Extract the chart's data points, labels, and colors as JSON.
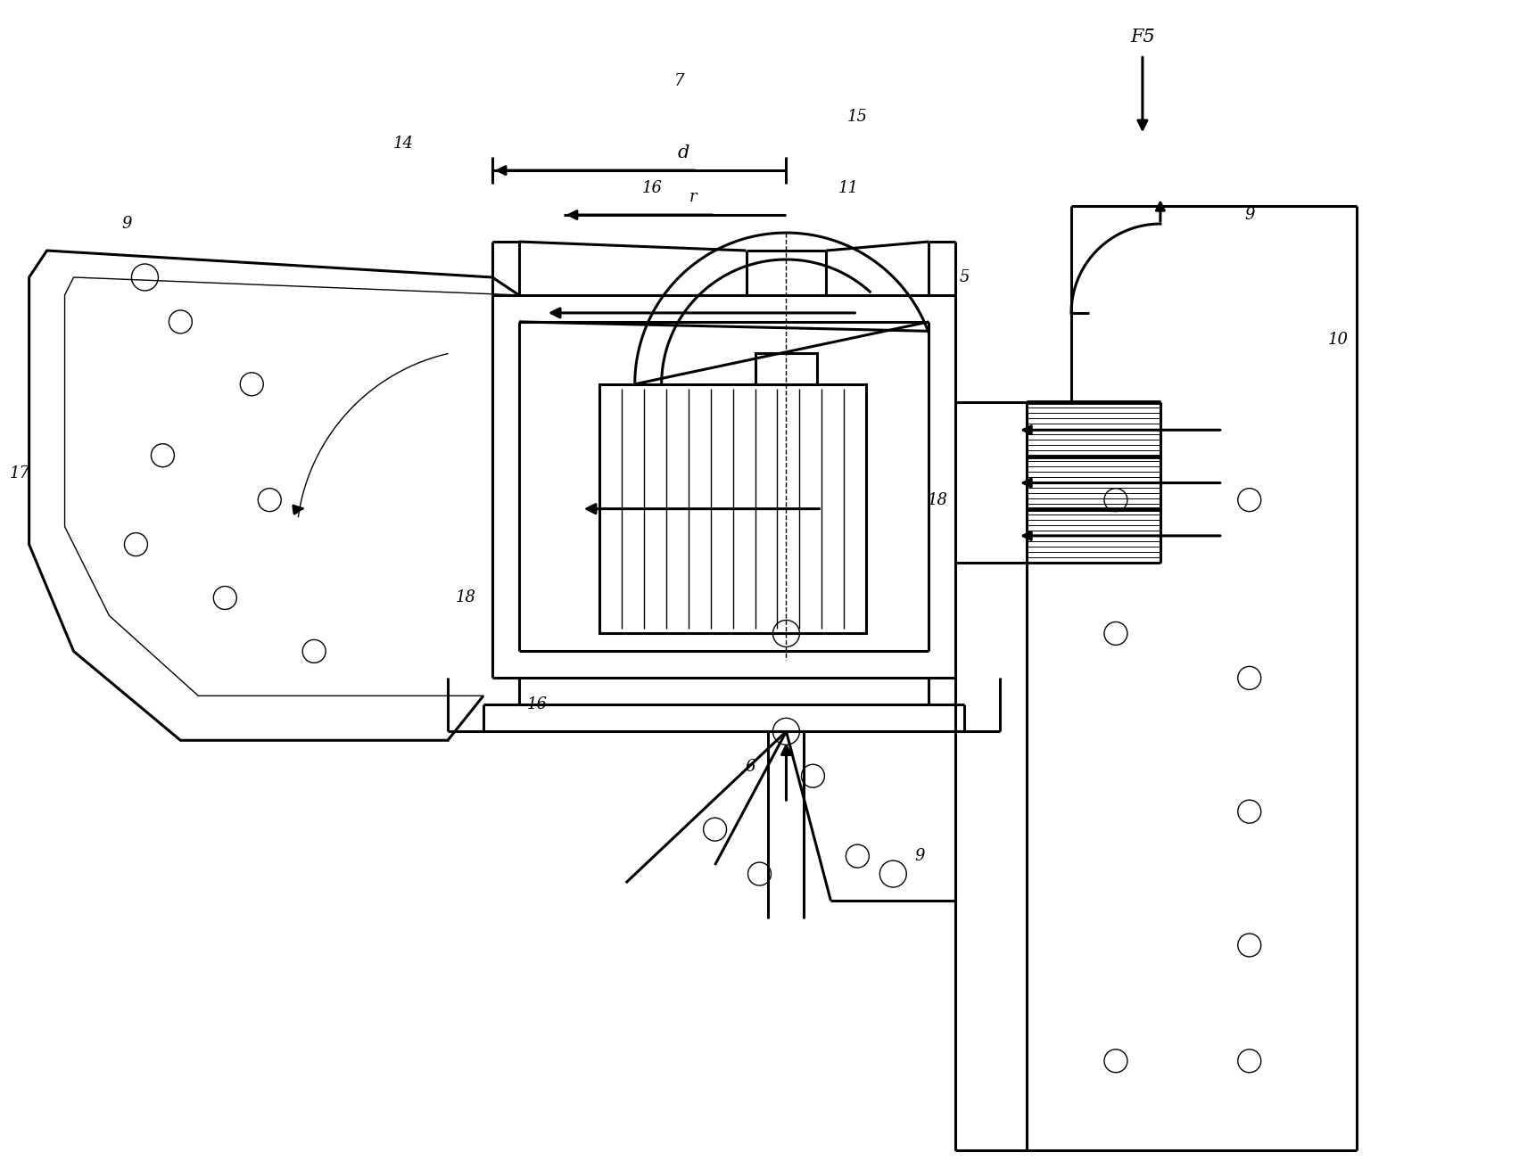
{
  "bg_color": "#ffffff",
  "line_color": "#000000",
  "lw_main": 2.2,
  "lw_thin": 1.0,
  "lw_thick": 3.5,
  "figsize": [
    17.03,
    13.11
  ],
  "dpi": 100,
  "xlim": [
    0,
    170
  ],
  "ylim": [
    0,
    131
  ]
}
